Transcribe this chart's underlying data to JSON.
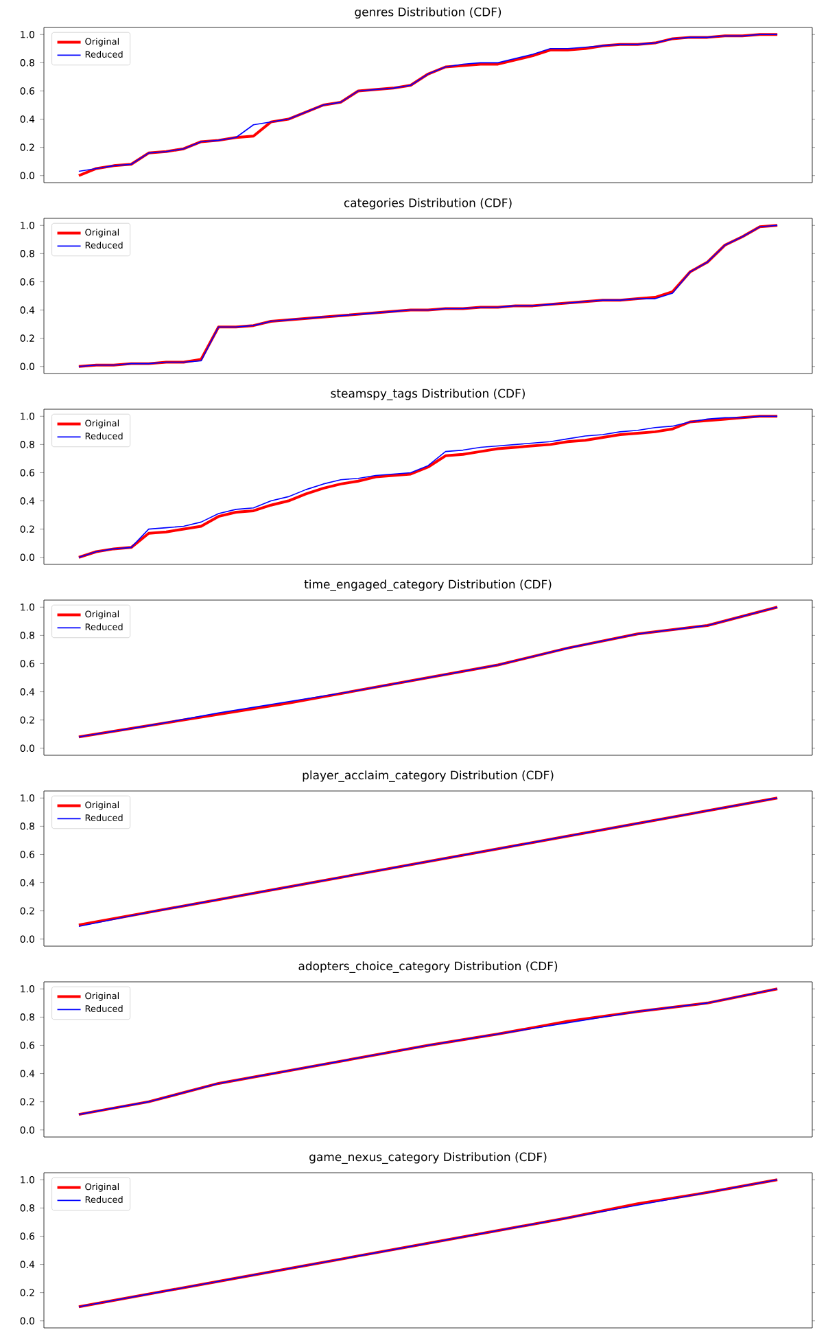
{
  "chart_data": [
    {
      "type": "line",
      "title": "genres Distribution (CDF)",
      "categories": [
        null,
        null,
        null,
        null,
        null,
        null,
        null,
        null,
        null,
        null,
        null,
        null,
        null,
        null,
        null,
        null,
        null,
        null,
        null,
        null,
        null,
        null,
        null,
        null,
        null,
        null,
        null,
        null,
        null,
        null,
        null,
        null,
        null,
        null,
        null,
        null,
        null,
        null,
        null,
        null,
        null
      ],
      "ylim": [
        -0.05,
        1.05
      ],
      "yticks": [
        {
          "value": 0,
          "label": "0.0"
        },
        {
          "value": 0.2,
          "label": "0.2"
        },
        {
          "value": 0.4,
          "label": "0.4"
        },
        {
          "value": 0.6,
          "label": "0.6"
        },
        {
          "value": 0.8,
          "label": "0.8"
        },
        {
          "value": 1,
          "label": "1.0"
        }
      ],
      "legend": "top left",
      "tick_labels": "y",
      "series": [
        {
          "name": "Original",
          "color": "#ff0000",
          "values": [
            0.0,
            0.05,
            0.07,
            0.08,
            0.16,
            0.17,
            0.19,
            0.24,
            0.25,
            0.27,
            0.28,
            0.38,
            0.4,
            0.45,
            0.5,
            0.52,
            0.6,
            0.61,
            0.62,
            0.64,
            0.72,
            0.77,
            0.78,
            0.79,
            0.79,
            0.82,
            0.85,
            0.89,
            0.89,
            0.9,
            0.92,
            0.93,
            0.93,
            0.94,
            0.97,
            0.98,
            0.98,
            0.99,
            0.99,
            1.0,
            1.0
          ]
        },
        {
          "name": "Reduced",
          "color": "#0000ff",
          "values": [
            0.03,
            0.05,
            0.07,
            0.08,
            0.16,
            0.17,
            0.19,
            0.24,
            0.25,
            0.27,
            0.36,
            0.38,
            0.4,
            0.45,
            0.5,
            0.52,
            0.6,
            0.61,
            0.62,
            0.64,
            0.72,
            0.77,
            0.79,
            0.8,
            0.8,
            0.83,
            0.86,
            0.9,
            0.9,
            0.91,
            0.92,
            0.93,
            0.93,
            0.94,
            0.97,
            0.98,
            0.98,
            0.99,
            0.99,
            1.0,
            1.0
          ]
        }
      ]
    },
    {
      "type": "line",
      "title": "categories Distribution (CDF)",
      "categories": [
        null,
        null,
        null,
        null,
        null,
        null,
        null,
        null,
        null,
        null,
        null,
        null,
        null,
        null,
        null,
        null,
        null,
        null,
        null,
        null,
        null,
        null,
        null,
        null,
        null,
        null,
        null,
        null,
        null,
        null,
        null,
        null,
        null,
        null,
        null,
        null,
        null,
        null,
        null,
        null,
        null
      ],
      "ylim": [
        -0.05,
        1.05
      ],
      "yticks": [
        {
          "value": 0,
          "label": "0.0"
        },
        {
          "value": 0.2,
          "label": "0.2"
        },
        {
          "value": 0.4,
          "label": "0.4"
        },
        {
          "value": 0.6,
          "label": "0.6"
        },
        {
          "value": 0.8,
          "label": "0.8"
        },
        {
          "value": 1,
          "label": "1.0"
        }
      ],
      "legend": "top left",
      "tick_labels": "y",
      "series": [
        {
          "name": "Original",
          "color": "#ff0000",
          "values": [
            0.0,
            0.01,
            0.01,
            0.02,
            0.02,
            0.03,
            0.03,
            0.05,
            0.28,
            0.28,
            0.29,
            0.32,
            0.33,
            0.34,
            0.35,
            0.36,
            0.37,
            0.38,
            0.39,
            0.4,
            0.4,
            0.41,
            0.41,
            0.42,
            0.42,
            0.43,
            0.43,
            0.44,
            0.45,
            0.46,
            0.47,
            0.47,
            0.48,
            0.49,
            0.53,
            0.67,
            0.74,
            0.86,
            0.92,
            0.99,
            1.0
          ]
        },
        {
          "name": "Reduced",
          "color": "#0000ff",
          "values": [
            0.0,
            0.01,
            0.01,
            0.02,
            0.02,
            0.03,
            0.03,
            0.04,
            0.28,
            0.28,
            0.29,
            0.32,
            0.33,
            0.34,
            0.35,
            0.36,
            0.37,
            0.38,
            0.39,
            0.4,
            0.4,
            0.41,
            0.41,
            0.42,
            0.42,
            0.43,
            0.43,
            0.44,
            0.45,
            0.46,
            0.47,
            0.47,
            0.48,
            0.48,
            0.52,
            0.67,
            0.74,
            0.86,
            0.92,
            0.99,
            1.0
          ]
        }
      ]
    },
    {
      "type": "line",
      "title": "steamspy_tags Distribution (CDF)",
      "categories": [
        null,
        null,
        null,
        null,
        null,
        null,
        null,
        null,
        null,
        null,
        null,
        null,
        null,
        null,
        null,
        null,
        null,
        null,
        null,
        null,
        null,
        null,
        null,
        null,
        null,
        null,
        null,
        null,
        null,
        null,
        null,
        null,
        null,
        null,
        null,
        null,
        null,
        null,
        null,
        null,
        null
      ],
      "ylim": [
        -0.05,
        1.05
      ],
      "yticks": [
        {
          "value": 0,
          "label": "0.0"
        },
        {
          "value": 0.2,
          "label": "0.2"
        },
        {
          "value": 0.4,
          "label": "0.4"
        },
        {
          "value": 0.6,
          "label": "0.6"
        },
        {
          "value": 0.8,
          "label": "0.8"
        },
        {
          "value": 1,
          "label": "1.0"
        }
      ],
      "legend": "top left",
      "tick_labels": "y",
      "series": [
        {
          "name": "Original",
          "color": "#ff0000",
          "values": [
            0.0,
            0.04,
            0.06,
            0.07,
            0.17,
            0.18,
            0.2,
            0.22,
            0.29,
            0.32,
            0.33,
            0.37,
            0.4,
            0.45,
            0.49,
            0.52,
            0.54,
            0.57,
            0.58,
            0.59,
            0.64,
            0.72,
            0.73,
            0.75,
            0.77,
            0.78,
            0.79,
            0.8,
            0.82,
            0.83,
            0.85,
            0.87,
            0.88,
            0.89,
            0.91,
            0.96,
            0.97,
            0.98,
            0.99,
            1.0,
            1.0
          ]
        },
        {
          "name": "Reduced",
          "color": "#0000ff",
          "values": [
            0.0,
            0.04,
            0.06,
            0.07,
            0.2,
            0.21,
            0.22,
            0.25,
            0.31,
            0.34,
            0.35,
            0.4,
            0.43,
            0.48,
            0.52,
            0.55,
            0.56,
            0.58,
            0.59,
            0.6,
            0.65,
            0.75,
            0.76,
            0.78,
            0.79,
            0.8,
            0.81,
            0.82,
            0.84,
            0.86,
            0.87,
            0.89,
            0.9,
            0.92,
            0.93,
            0.96,
            0.98,
            0.99,
            0.99,
            1.0,
            1.0
          ]
        }
      ]
    },
    {
      "type": "line",
      "title": "time_engaged_category Distribution (CDF)",
      "categories": [
        null,
        null,
        null,
        null,
        null,
        null,
        null,
        null,
        null,
        null,
        null
      ],
      "ylim": [
        -0.05,
        1.05
      ],
      "yticks": [
        {
          "value": 0,
          "label": "0.0"
        },
        {
          "value": 0.2,
          "label": "0.2"
        },
        {
          "value": 0.4,
          "label": "0.4"
        },
        {
          "value": 0.6,
          "label": "0.6"
        },
        {
          "value": 0.8,
          "label": "0.8"
        },
        {
          "value": 1,
          "label": "1.0"
        }
      ],
      "legend": "top left",
      "tick_labels": "y",
      "series": [
        {
          "name": "Original",
          "color": "#ff0000",
          "values": [
            0.08,
            0.16,
            0.24,
            0.32,
            0.41,
            0.5,
            0.59,
            0.71,
            0.81,
            0.87,
            1.0
          ]
        },
        {
          "name": "Reduced",
          "color": "#0000ff",
          "values": [
            0.08,
            0.16,
            0.25,
            0.33,
            0.41,
            0.5,
            0.59,
            0.71,
            0.81,
            0.87,
            1.0
          ]
        }
      ]
    },
    {
      "type": "line",
      "title": "player_acclaim_category Distribution (CDF)",
      "categories": [
        null,
        null,
        null,
        null,
        null,
        null,
        null,
        null,
        null,
        null,
        null
      ],
      "ylim": [
        -0.05,
        1.05
      ],
      "yticks": [
        {
          "value": 0,
          "label": "0.0"
        },
        {
          "value": 0.2,
          "label": "0.2"
        },
        {
          "value": 0.4,
          "label": "0.4"
        },
        {
          "value": 0.6,
          "label": "0.6"
        },
        {
          "value": 0.8,
          "label": "0.8"
        },
        {
          "value": 1,
          "label": "1.0"
        }
      ],
      "legend": "top left",
      "tick_labels": "y",
      "series": [
        {
          "name": "Original",
          "color": "#ff0000",
          "values": [
            0.1,
            0.19,
            0.28,
            0.37,
            0.46,
            0.55,
            0.64,
            0.73,
            0.82,
            0.91,
            1.0
          ]
        },
        {
          "name": "Reduced",
          "color": "#0000ff",
          "values": [
            0.09,
            0.19,
            0.28,
            0.37,
            0.46,
            0.55,
            0.64,
            0.73,
            0.82,
            0.91,
            1.0
          ]
        }
      ]
    },
    {
      "type": "line",
      "title": "adopters_choice_category Distribution (CDF)",
      "categories": [
        null,
        null,
        null,
        null,
        null,
        null,
        null,
        null,
        null,
        null,
        null
      ],
      "ylim": [
        -0.05,
        1.05
      ],
      "yticks": [
        {
          "value": 0,
          "label": "0.0"
        },
        {
          "value": 0.2,
          "label": "0.2"
        },
        {
          "value": 0.4,
          "label": "0.4"
        },
        {
          "value": 0.6,
          "label": "0.6"
        },
        {
          "value": 0.8,
          "label": "0.8"
        },
        {
          "value": 1,
          "label": "1.0"
        }
      ],
      "legend": "top left",
      "tick_labels": "y",
      "series": [
        {
          "name": "Original",
          "color": "#ff0000",
          "values": [
            0.11,
            0.2,
            0.33,
            0.42,
            0.51,
            0.6,
            0.68,
            0.77,
            0.84,
            0.9,
            1.0
          ]
        },
        {
          "name": "Reduced",
          "color": "#0000ff",
          "values": [
            0.11,
            0.2,
            0.33,
            0.42,
            0.51,
            0.6,
            0.68,
            0.76,
            0.84,
            0.9,
            1.0
          ]
        }
      ]
    },
    {
      "type": "line",
      "title": "game_nexus_category Distribution (CDF)",
      "categories": [
        null,
        null,
        null,
        null,
        null,
        null,
        null,
        null,
        null,
        null,
        null
      ],
      "ylim": [
        -0.05,
        1.05
      ],
      "yticks": [
        {
          "value": 0,
          "label": "0.0"
        },
        {
          "value": 0.2,
          "label": "0.2"
        },
        {
          "value": 0.4,
          "label": "0.4"
        },
        {
          "value": 0.6,
          "label": "0.6"
        },
        {
          "value": 0.8,
          "label": "0.8"
        },
        {
          "value": 1,
          "label": "1.0"
        }
      ],
      "legend": "top left",
      "tick_labels": "y",
      "series": [
        {
          "name": "Original",
          "color": "#ff0000",
          "values": [
            0.1,
            0.19,
            0.28,
            0.37,
            0.46,
            0.55,
            0.64,
            0.73,
            0.83,
            0.91,
            1.0
          ]
        },
        {
          "name": "Reduced",
          "color": "#0000ff",
          "values": [
            0.1,
            0.19,
            0.28,
            0.37,
            0.46,
            0.55,
            0.64,
            0.73,
            0.82,
            0.91,
            1.0
          ]
        }
      ]
    }
  ]
}
